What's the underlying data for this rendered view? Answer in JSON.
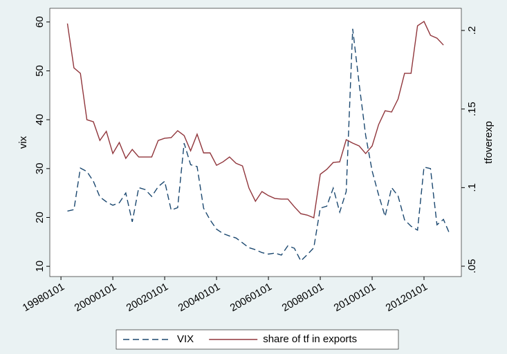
{
  "chart_data": {
    "type": "line",
    "x": [
      1998.25,
      1998.5,
      1998.75,
      1999,
      1999.25,
      1999.5,
      1999.75,
      2000,
      2000.25,
      2000.5,
      2000.75,
      2001,
      2001.25,
      2001.5,
      2001.75,
      2002,
      2002.25,
      2002.5,
      2002.75,
      2003,
      2003.25,
      2003.5,
      2003.75,
      2004,
      2004.25,
      2004.5,
      2004.75,
      2005,
      2005.25,
      2005.5,
      2005.75,
      2006,
      2006.25,
      2006.5,
      2006.75,
      2007,
      2007.25,
      2007.5,
      2007.75,
      2008,
      2008.25,
      2008.5,
      2008.75,
      2009,
      2009.25,
      2009.5,
      2009.75,
      2010,
      2010.25,
      2010.5,
      2010.75,
      2011,
      2011.25,
      2011.5,
      2011.75,
      2012,
      2012.25,
      2012.5,
      2012.75,
      2013
    ],
    "xlim": [
      1997.57,
      2013.44
    ],
    "xticks": [
      {
        "value": 1998,
        "label": "19980101"
      },
      {
        "value": 2000,
        "label": "20000101"
      },
      {
        "value": 2002,
        "label": "20020101"
      },
      {
        "value": 2004,
        "label": "20040101"
      },
      {
        "value": 2006,
        "label": "20060101"
      },
      {
        "value": 2008,
        "label": "20080101"
      },
      {
        "value": 2010,
        "label": "20100101"
      },
      {
        "value": 2012,
        "label": "20120101"
      }
    ],
    "y_label": "vix",
    "y2_label": "tfoverexp",
    "ylim": [
      7.9,
      62.8
    ],
    "yticks": [
      10,
      20,
      30,
      40,
      50,
      60
    ],
    "y2lim": [
      0.0434,
      0.2141
    ],
    "y2ticks": [
      {
        "value": 0.05,
        "label": ".05"
      },
      {
        "value": 0.1,
        "label": ".1"
      },
      {
        "value": 0.15,
        "label": ".15"
      },
      {
        "value": 0.2,
        "label": ".2"
      }
    ],
    "legend": "bottom",
    "series": [
      {
        "name": "VIX",
        "color": "#1a476f",
        "dash": true,
        "values": [
          21.3,
          21.6,
          30.1,
          29.4,
          27.4,
          24.2,
          23.2,
          22.5,
          23,
          25,
          19.1,
          26.1,
          25.7,
          24.3,
          26.3,
          27.4,
          21.5,
          22,
          35.2,
          30.8,
          30.4,
          21.9,
          19.5,
          17.6,
          16.7,
          16.2,
          15.8,
          14.8,
          13.8,
          13.4,
          12.8,
          12.5,
          12.7,
          12.3,
          14.2,
          13.7,
          11.1,
          12.4,
          13.8,
          21.9,
          22.3,
          26,
          21.1,
          25.3,
          58.6,
          47.3,
          36.8,
          29.5,
          24.6,
          20.2,
          26.1,
          24.4,
          19.5,
          18.2,
          17.4,
          30.3,
          30,
          18.5,
          19.6,
          16.5
        ]
      },
      {
        "name": "share of tf in exports",
        "color": "#90353b",
        "axis": "y2",
        "values": [
          0.2044,
          0.1762,
          0.1727,
          0.1432,
          0.1419,
          0.13,
          0.1358,
          0.1217,
          0.1287,
          0.1186,
          0.1243,
          0.1195,
          0.1195,
          0.1195,
          0.13,
          0.1314,
          0.1318,
          0.1362,
          0.1331,
          0.1234,
          0.134,
          0.1221,
          0.1221,
          0.1142,
          0.1164,
          0.1195,
          0.1155,
          0.1138,
          0.0997,
          0.0913,
          0.0975,
          0.0949,
          0.0931,
          0.0927,
          0.0927,
          0.0878,
          0.0834,
          0.0825,
          0.0808,
          0.1085,
          0.1116,
          0.116,
          0.1164,
          0.1305,
          0.1283,
          0.1265,
          0.1217,
          0.1265,
          0.1401,
          0.1489,
          0.1481,
          0.1564,
          0.1727,
          0.1727,
          0.203,
          0.2057,
          0.1969,
          0.1951,
          0.1907,
          null
        ]
      }
    ]
  }
}
